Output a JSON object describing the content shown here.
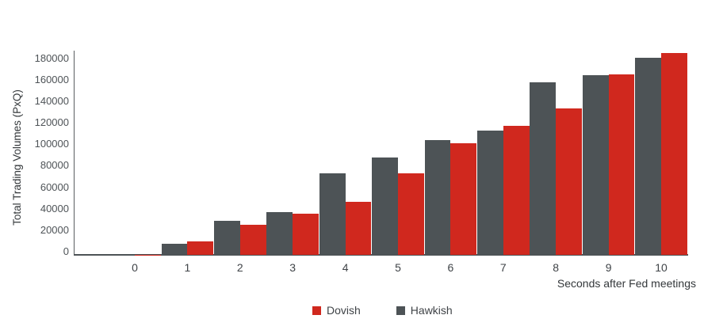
{
  "chart_data": {
    "type": "bar",
    "title": "",
    "xlabel": "Seconds after Fed meetings",
    "ylabel": "Total Trading Volumes (PxQ)",
    "categories": [
      "0",
      "1",
      "2",
      "3",
      "4",
      "5",
      "6",
      "7",
      "8",
      "9",
      "10"
    ],
    "series": [
      {
        "name": "Dovish",
        "color": "#d0281e",
        "values": [
          300,
          12500,
          28000,
          38000,
          49000,
          76000,
          103500,
          120000,
          136000,
          168000,
          188000
        ]
      },
      {
        "name": "Hawkish",
        "color": "#4d5356",
        "values": [
          800,
          10000,
          31500,
          39500,
          75500,
          90500,
          106500,
          115500,
          160500,
          167500,
          183500
        ]
      }
    ],
    "group_bar_order": [
      "Hawkish",
      "Dovish"
    ],
    "ylim": [
      0,
      190000
    ],
    "ytick_labels": [
      "0",
      "20000",
      "40000",
      "60000",
      "80000",
      "100000",
      "120000",
      "140000",
      "160000",
      "180000"
    ],
    "xtick_labels": [
      "0",
      "1",
      "2",
      "3",
      "4",
      "5",
      "6",
      "7",
      "8",
      "9",
      "10"
    ],
    "legend": {
      "position": "bottom-center",
      "items": [
        "Dovish",
        "Hawkish"
      ]
    },
    "grid": false
  },
  "colors": {
    "dovish": "#d0281e",
    "hawkish": "#4d5356",
    "axis_line": "#4d5356",
    "tick_text": "#4e5357",
    "title_text": "#33373a",
    "background": "#ffffff"
  }
}
